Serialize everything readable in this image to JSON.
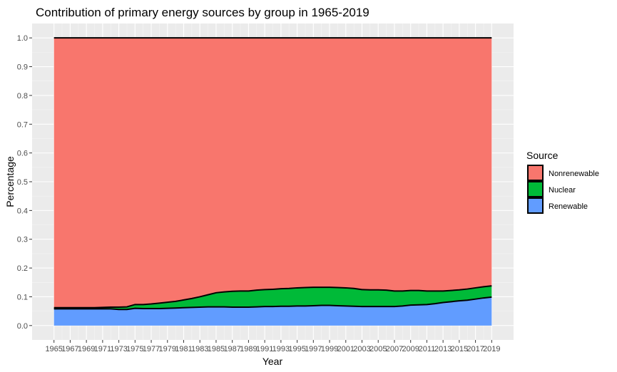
{
  "chart_data": {
    "type": "area",
    "title": "Contribution of primary energy sources by group in 1965-2019",
    "xlabel": "Year",
    "ylabel": "Percentage",
    "xlim": [
      1965,
      2019
    ],
    "ylim": [
      0,
      1.0
    ],
    "x_ticks": [
      1965,
      1967,
      1969,
      1971,
      1973,
      1975,
      1977,
      1979,
      1981,
      1983,
      1985,
      1987,
      1989,
      1991,
      1993,
      1995,
      1997,
      1999,
      2001,
      2003,
      2005,
      2007,
      2009,
      2011,
      2013,
      2015,
      2017,
      2019
    ],
    "y_ticks": [
      0.0,
      0.1,
      0.2,
      0.3,
      0.4,
      0.5,
      0.6,
      0.7,
      0.8,
      0.9,
      1.0
    ],
    "y_tick_labels": [
      "0.0",
      "0.1",
      "0.2",
      "0.3",
      "0.4",
      "0.5",
      "0.6",
      "0.7",
      "0.8",
      "0.9",
      "1.0"
    ],
    "stacked": true,
    "grid": true,
    "legend_position": "right",
    "legend_title": "Source",
    "legend_order": [
      "Nonrenewable",
      "Nuclear",
      "Renewable"
    ],
    "x": [
      1965,
      1966,
      1967,
      1968,
      1969,
      1970,
      1971,
      1972,
      1973,
      1974,
      1975,
      1976,
      1977,
      1978,
      1979,
      1980,
      1981,
      1982,
      1983,
      1984,
      1985,
      1986,
      1987,
      1988,
      1989,
      1990,
      1991,
      1992,
      1993,
      1994,
      1995,
      1996,
      1997,
      1998,
      1999,
      2000,
      2001,
      2002,
      2003,
      2004,
      2005,
      2006,
      2007,
      2008,
      2009,
      2010,
      2011,
      2012,
      2013,
      2014,
      2015,
      2016,
      2017,
      2018,
      2019
    ],
    "series": [
      {
        "name": "Renewable",
        "color": "#619CFF",
        "values": [
          0.058,
          0.058,
          0.058,
          0.058,
          0.058,
          0.058,
          0.058,
          0.058,
          0.056,
          0.056,
          0.06,
          0.059,
          0.059,
          0.059,
          0.06,
          0.061,
          0.062,
          0.063,
          0.064,
          0.065,
          0.065,
          0.065,
          0.064,
          0.064,
          0.064,
          0.065,
          0.066,
          0.066,
          0.067,
          0.067,
          0.068,
          0.068,
          0.069,
          0.07,
          0.07,
          0.069,
          0.068,
          0.067,
          0.066,
          0.066,
          0.066,
          0.066,
          0.066,
          0.068,
          0.071,
          0.072,
          0.073,
          0.076,
          0.08,
          0.083,
          0.086,
          0.088,
          0.092,
          0.096,
          0.099
        ]
      },
      {
        "name": "Nuclear",
        "color": "#00BA38",
        "values": [
          0.004,
          0.004,
          0.004,
          0.004,
          0.004,
          0.004,
          0.005,
          0.006,
          0.008,
          0.009,
          0.013,
          0.014,
          0.016,
          0.019,
          0.021,
          0.023,
          0.027,
          0.031,
          0.036,
          0.042,
          0.049,
          0.052,
          0.055,
          0.056,
          0.056,
          0.058,
          0.059,
          0.06,
          0.061,
          0.062,
          0.063,
          0.064,
          0.064,
          0.063,
          0.063,
          0.063,
          0.063,
          0.062,
          0.059,
          0.058,
          0.058,
          0.057,
          0.054,
          0.052,
          0.051,
          0.05,
          0.047,
          0.044,
          0.04,
          0.039,
          0.038,
          0.039,
          0.039,
          0.039,
          0.039
        ]
      },
      {
        "name": "Nonrenewable",
        "color": "#F8766D",
        "values": [
          0.938,
          0.938,
          0.938,
          0.938,
          0.938,
          0.938,
          0.937,
          0.936,
          0.936,
          0.935,
          0.927,
          0.927,
          0.925,
          0.922,
          0.919,
          0.916,
          0.911,
          0.906,
          0.9,
          0.893,
          0.886,
          0.883,
          0.881,
          0.88,
          0.88,
          0.877,
          0.875,
          0.874,
          0.872,
          0.871,
          0.869,
          0.868,
          0.867,
          0.867,
          0.867,
          0.868,
          0.869,
          0.871,
          0.875,
          0.876,
          0.876,
          0.877,
          0.88,
          0.88,
          0.878,
          0.878,
          0.88,
          0.88,
          0.88,
          0.878,
          0.876,
          0.873,
          0.869,
          0.865,
          0.862
        ]
      }
    ]
  }
}
